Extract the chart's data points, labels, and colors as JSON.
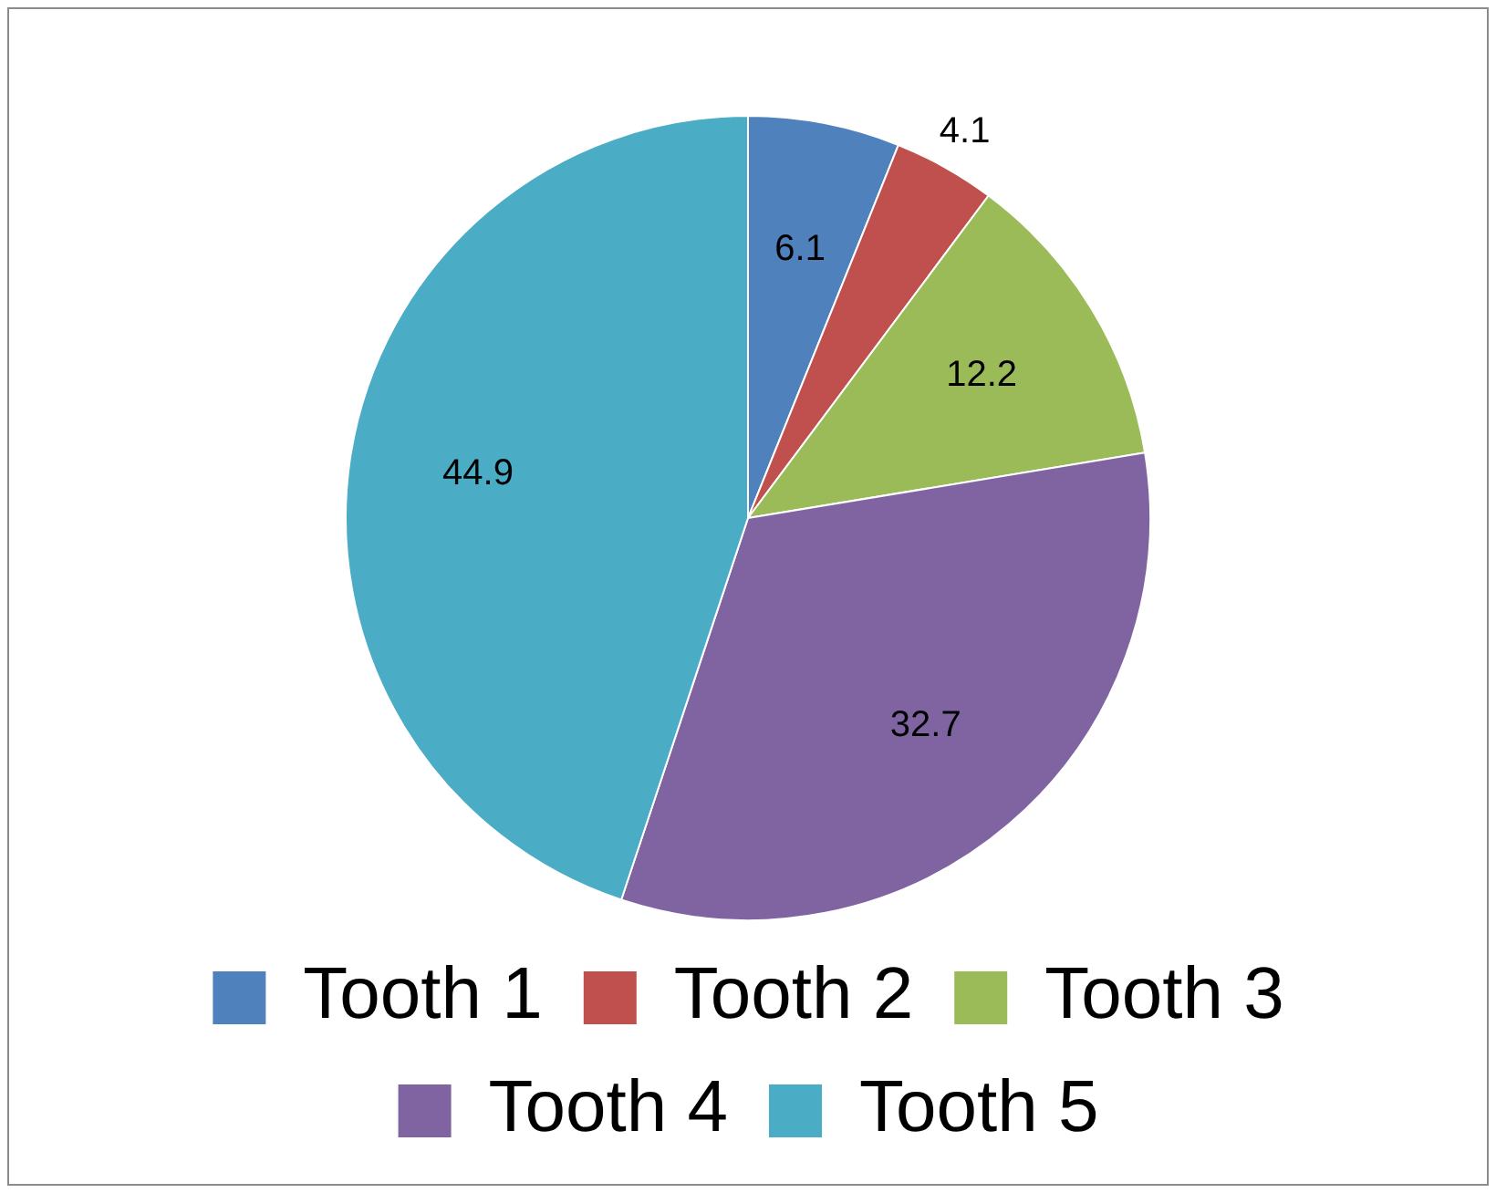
{
  "chart_data": {
    "type": "pie",
    "categories": [
      "Tooth 1",
      "Tooth 2",
      "Tooth 3",
      "Tooth 4",
      "Tooth 5"
    ],
    "values": [
      6.1,
      4.1,
      12.2,
      32.7,
      44.9
    ],
    "colors": [
      "#4f81bd",
      "#c0504d",
      "#9bbb59",
      "#8064a2",
      "#4bacc6"
    ],
    "data_labels": true,
    "legend": "bottom"
  }
}
